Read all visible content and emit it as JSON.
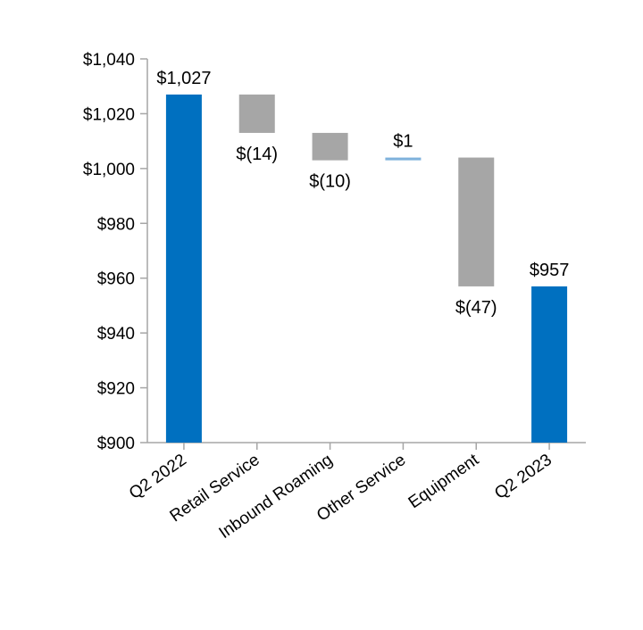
{
  "chart_data": {
    "type": "waterfall",
    "title": "",
    "xlabel": "",
    "ylabel": "",
    "ylim": [
      900,
      1040
    ],
    "yticks": [
      900,
      920,
      940,
      960,
      980,
      1000,
      1020,
      1040
    ],
    "ytick_labels": [
      "$900",
      "$920",
      "$940",
      "$960",
      "$980",
      "$1,000",
      "$1,020",
      "$1,040"
    ],
    "grid": false,
    "legend": "none",
    "categories": [
      "Q2 2022",
      "Retail Service",
      "Inbound Roaming",
      "Other Service",
      "Equipment",
      "Q2 2023"
    ],
    "bars": [
      {
        "category": "Q2 2022",
        "kind": "total",
        "start": 900,
        "end": 1027,
        "label": "$1,027"
      },
      {
        "category": "Retail Service",
        "kind": "decrease",
        "start": 1027,
        "end": 1013,
        "label": "$(14)"
      },
      {
        "category": "Inbound Roaming",
        "kind": "decrease",
        "start": 1013,
        "end": 1003,
        "label": "$(10)"
      },
      {
        "category": "Other Service",
        "kind": "increase",
        "start": 1003,
        "end": 1004,
        "label": "$1"
      },
      {
        "category": "Equipment",
        "kind": "decrease",
        "start": 1004,
        "end": 957,
        "label": "$(47)"
      },
      {
        "category": "Q2 2023",
        "kind": "total",
        "start": 900,
        "end": 957,
        "label": "$957"
      }
    ],
    "colors": {
      "total": "#0070c0",
      "decrease": "#a6a6a6",
      "increase": "#7fb2dc",
      "axis": "#a6a6a6"
    }
  }
}
